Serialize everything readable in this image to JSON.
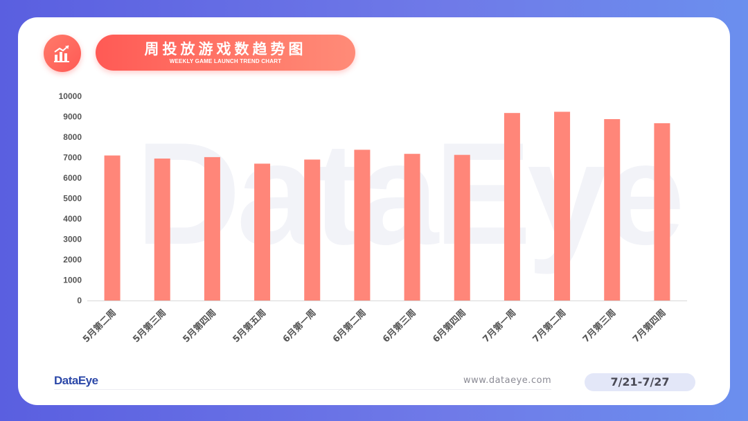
{
  "header": {
    "title": "周投放游戏数趋势图",
    "subtitle": "WEEKLY GAME LAUNCH TREND CHART"
  },
  "watermark": "DataEye",
  "footer": {
    "brand": "DataEye",
    "website": "www.dataeye.com",
    "date_range": "7/21-7/27"
  },
  "colors": {
    "bar": "#ff8679",
    "accent": "#ff5a55",
    "axis_text": "#555555"
  },
  "icons": {
    "title_icon": "bar-chart-trend-icon"
  },
  "chart_data": {
    "type": "bar",
    "title": "周投放游戏数趋势图",
    "xlabel": "",
    "ylabel": "",
    "ylim": [
      0,
      10000
    ],
    "yticks": [
      0,
      1000,
      2000,
      3000,
      4000,
      5000,
      6000,
      7000,
      8000,
      9000,
      10000
    ],
    "grid": false,
    "legend": "none",
    "categories": [
      "5月第二周",
      "5月第三周",
      "5月第四周",
      "5月第五周",
      "6月第一周",
      "6月第二周",
      "6月第三周",
      "6月第四周",
      "7月第一周",
      "7月第二周",
      "7月第三周",
      "7月第四周"
    ],
    "values": [
      7100,
      6950,
      7020,
      6700,
      6900,
      7380,
      7180,
      7130,
      9180,
      9240,
      8880,
      8680
    ]
  }
}
